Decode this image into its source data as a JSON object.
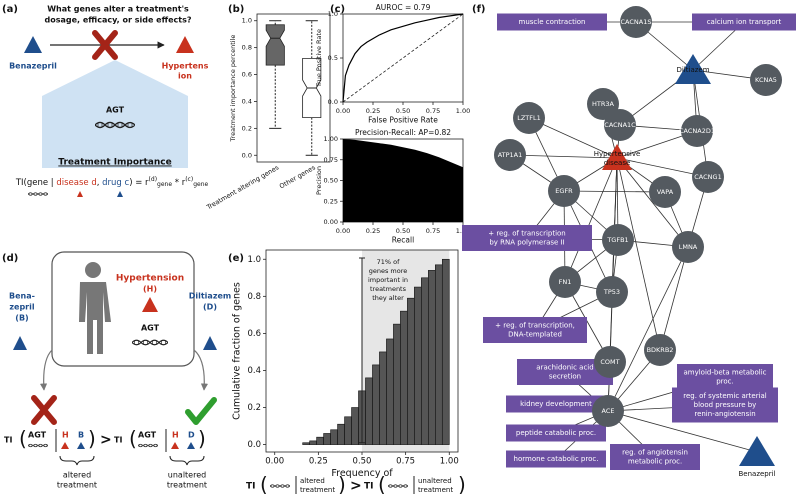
{
  "panel_labels": [
    "(a)",
    "(b)",
    "(c)",
    "(d)",
    "(e)",
    "(f)"
  ],
  "panel_a": {
    "question": [
      "What genes alter a treatment's",
      "dosage, efficacy, or side effects?"
    ],
    "drug": "Benazepril",
    "disease": [
      "Hypertens",
      "ion"
    ],
    "gene": "AGT",
    "heading": "Treatment Importance",
    "formula": [
      "TI(gene |",
      "disease d",
      ",",
      "drug c",
      ") = r",
      "(d)",
      "gene",
      " * r",
      "(c)",
      "gene"
    ]
  },
  "panel_d": {
    "disease": "Hypertension",
    "disease_code": "(H)",
    "gene": "AGT",
    "drug_b": [
      "Bena-",
      "zepril"
    ],
    "drug_b_code": "(B)",
    "drug_d": "Diltiazem",
    "drug_d_code": "(D)",
    "ti": "TI",
    "gene_short": "AGT",
    "h": "H",
    "b": "B",
    "d": "D",
    "gt": ">",
    "altered": [
      "altered",
      "treatment"
    ],
    "unaltered": [
      "unaltered",
      "treatment"
    ]
  },
  "panel_e_formula": {
    "ti": "TI",
    "gt": ">",
    "altered": [
      "altered",
      "treatment"
    ],
    "unaltered": [
      "unaltered",
      "treatment"
    ]
  },
  "chart_data": [
    {
      "type": "box",
      "ylabel": "Treatment importance percentile",
      "categories": [
        "Treatment altering genes",
        "Other genes"
      ],
      "boxes": [
        {
          "whislo": 0.2,
          "q1": 0.67,
          "median": 0.87,
          "q3": 0.97,
          "whishi": 1.0
        },
        {
          "whislo": 0.0,
          "q1": 0.28,
          "median": 0.5,
          "q3": 0.72,
          "whishi": 1.0
        }
      ],
      "colors": [
        "#666666",
        "#ffffff"
      ],
      "ylim": [
        -0.05,
        1.05
      ],
      "yticks": [
        {
          "value": 0,
          "label": "0.0"
        },
        0.2,
        0.4,
        0.6,
        0.8,
        {
          "value": 1,
          "label": "1.0"
        }
      ]
    },
    {
      "type": "line",
      "title": "AUROC = 0.79",
      "xlabel": "False Positive Rate",
      "ylabel": "True Positive Rate",
      "color": "#000000",
      "diagonal": true,
      "x": [
        0,
        0.02,
        0.05,
        0.1,
        0.15,
        0.2,
        0.3,
        0.4,
        0.5,
        0.6,
        0.7,
        0.8,
        0.9,
        1
      ],
      "y": [
        0,
        0.3,
        0.42,
        0.55,
        0.63,
        0.68,
        0.76,
        0.82,
        0.86,
        0.9,
        0.93,
        0.96,
        0.98,
        1
      ],
      "xlim": [
        0,
        1
      ],
      "ylim": [
        0,
        1
      ],
      "xticks": [
        {
          "value": 0,
          "label": "0.00"
        },
        {
          "value": 0.25,
          "label": "0.25"
        },
        {
          "value": 0.5,
          "label": "0.50"
        },
        {
          "value": 0.75,
          "label": "0.75"
        },
        {
          "value": 1,
          "label": "1.00"
        }
      ],
      "yticks": [
        {
          "value": 0,
          "label": "0.0"
        },
        0.5,
        {
          "value": 1,
          "label": "1.0"
        }
      ]
    },
    {
      "type": "area",
      "title": "Precision-Recall: AP=0.82",
      "xlabel": "Recall",
      "ylabel": "Precision",
      "color": "#000000",
      "x": [
        0,
        0.1,
        0.2,
        0.3,
        0.4,
        0.5,
        0.6,
        0.7,
        0.8,
        0.9,
        1
      ],
      "y": [
        1,
        0.99,
        0.97,
        0.95,
        0.93,
        0.9,
        0.87,
        0.83,
        0.78,
        0.72,
        0.66
      ],
      "xlim": [
        0,
        1
      ],
      "ylim": [
        0,
        1
      ],
      "xticks": [
        {
          "value": 0,
          "label": "0.00"
        },
        {
          "value": 0.25,
          "label": "0.25"
        },
        {
          "value": 0.5,
          "label": "0.50"
        },
        {
          "value": 0.75,
          "label": "0.75"
        },
        {
          "value": 1,
          "label": "1.00"
        }
      ],
      "yticks": [
        {
          "value": 0,
          "label": "0.00"
        },
        {
          "value": 0.25,
          "label": "0.25"
        },
        {
          "value": 0.5,
          "label": "0.50"
        },
        {
          "value": 0.75,
          "label": "0.75"
        },
        {
          "value": 1,
          "label": "1.00"
        }
      ]
    },
    {
      "type": "histogram",
      "xlabel": "Frequency of",
      "ylabel": "Cumulative fraction of genes",
      "color": "#555555",
      "bins": [
        0.16,
        0.2,
        0.24,
        0.28,
        0.32,
        0.36,
        0.4,
        0.44,
        0.48,
        0.52,
        0.56,
        0.6,
        0.64,
        0.68,
        0.72,
        0.76,
        0.8,
        0.84,
        0.88,
        0.92,
        0.96,
        1.0
      ],
      "values": [
        0.01,
        0.02,
        0.04,
        0.06,
        0.08,
        0.11,
        0.15,
        0.2,
        0.29,
        0.36,
        0.43,
        0.5,
        0.57,
        0.65,
        0.72,
        0.79,
        0.85,
        0.9,
        0.94,
        0.97,
        1.0
      ],
      "highlight": [
        0.5,
        1.0
      ],
      "annotation": [
        "71% of",
        "genes more",
        "important in",
        "treatments",
        "they alter"
      ],
      "xlim": [
        -0.05,
        1.05
      ],
      "ylim": [
        -0.04,
        1.05
      ],
      "xticks": [
        {
          "value": 0,
          "label": "0.00"
        },
        {
          "value": 0.25,
          "label": "0.25"
        },
        {
          "value": 0.5,
          "label": "0.50"
        },
        {
          "value": 0.75,
          "label": "0.75"
        },
        {
          "value": 1,
          "label": "1.00"
        }
      ],
      "yticks": [
        {
          "value": 0,
          "label": "0.0"
        },
        0.2,
        0.4,
        0.6,
        0.8,
        {
          "value": 1,
          "label": "1.0"
        }
      ]
    }
  ],
  "network": {
    "genes": [
      "CACNA1S",
      "KCNA5",
      "HTR3A",
      "LZTFL1",
      "CACNA1C",
      "CACNA2D1",
      "ATP1A1",
      "CACNG1",
      "EGFR",
      "VAPA",
      "TGFB1",
      "LMNA",
      "FN1",
      "TP53",
      "BDKRB2",
      "COMT",
      "ACE"
    ],
    "drugs": [
      "Diltiazem",
      "Benazepril"
    ],
    "disease": [
      "Hypertensive",
      "disease"
    ],
    "processes": [
      [
        "muscle contraction"
      ],
      [
        "calcium ion transport"
      ],
      [
        "+ reg. of transcription",
        "by RNA polymerase II"
      ],
      [
        "+ reg. of transcription,",
        "DNA-templated"
      ],
      [
        "arachidonic acid",
        "secretion"
      ],
      [
        "amyloid-beta metabolic",
        "proc."
      ],
      [
        "kidney development"
      ],
      [
        "reg. of systemic arterial",
        "blood pressure by",
        "renin-angiotensin"
      ],
      [
        "peptide catabolic proc."
      ],
      [
        "hormone catabolic proc."
      ],
      [
        "reg. of angiotensin",
        "metabolic proc."
      ]
    ]
  }
}
